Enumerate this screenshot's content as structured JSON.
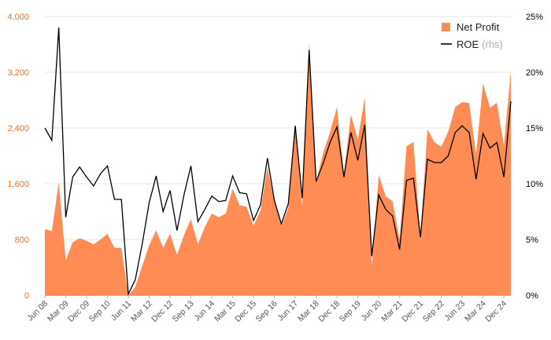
{
  "chart_data": {
    "type": "area",
    "x": [
      "Jun 08",
      "Sep 08",
      "Dec 08",
      "Mar 09",
      "Jun 09",
      "Sep 09",
      "Dec 09",
      "Mar 10",
      "Jun 10",
      "Sep 10",
      "Dec 10",
      "Mar 11",
      "Jun 11",
      "Sep 11",
      "Dec 11",
      "Mar 12",
      "Jun 12",
      "Sep 12",
      "Dec 12",
      "Mar 13",
      "Jun 13",
      "Sep 13",
      "Dec 13",
      "Mar 14",
      "Jun 14",
      "Sep 14",
      "Dec 14",
      "Mar 15",
      "Jun 15",
      "Sep 15",
      "Dec 15",
      "Mar 16",
      "Jun 16",
      "Sep 16",
      "Dec 16",
      "Mar 17",
      "Jun 17",
      "Sep 17",
      "Dec 17",
      "Mar 18",
      "Jun 18",
      "Sep 18",
      "Dec 18",
      "Mar 19",
      "Jun 19",
      "Sep 19",
      "Dec 19",
      "Mar 20",
      "Jun 20",
      "Sep 20",
      "Dec 20",
      "Mar 21",
      "Jun 21",
      "Sep 21",
      "Dec 21",
      "Mar 22",
      "Jun 22",
      "Sep 22",
      "Dec 22",
      "Mar 23",
      "Jun 23",
      "Sep 23",
      "Dec 23",
      "Mar 24",
      "Jun 24",
      "Sep 24",
      "Dec 24",
      "Mar 25"
    ],
    "xticks": [
      "Jun 08",
      "Mar 09",
      "Dec 09",
      "Sep 10",
      "Jun 11",
      "Mar 12",
      "Dec 12",
      "Sep 13",
      "Jun 14",
      "Mar 15",
      "Dec 15",
      "Sep 16",
      "Jun 17",
      "Mar 18",
      "Dec 18",
      "Sep 19",
      "Jun 20",
      "Mar 21",
      "Dec 21",
      "Sep 22",
      "Jun 23",
      "Mar 24",
      "Dec 24"
    ],
    "series": [
      {
        "name": "Net Profit",
        "axis": "left",
        "type": "area",
        "color": "#ff8c55",
        "values": [
          950,
          920,
          1620,
          500,
          760,
          820,
          780,
          730,
          800,
          880,
          680,
          680,
          0,
          120,
          420,
          720,
          930,
          680,
          880,
          580,
          860,
          1090,
          730,
          980,
          1170,
          1120,
          1170,
          1530,
          1290,
          1270,
          1000,
          1210,
          1840,
          1350,
          990,
          1250,
          2460,
          1260,
          3620,
          1620,
          2040,
          2340,
          2700,
          1750,
          2590,
          2240,
          2840,
          420,
          1730,
          1420,
          1350,
          800,
          2140,
          2200,
          840,
          2380,
          2200,
          2130,
          2350,
          2700,
          2770,
          2760,
          2030,
          3040,
          2690,
          2760,
          2150,
          3220
        ]
      },
      {
        "name": "ROE",
        "note": "(rhs)",
        "axis": "right",
        "type": "line",
        "color": "#000000",
        "values": [
          15.0,
          13.9,
          24.0,
          7.0,
          10.6,
          11.5,
          10.6,
          9.8,
          10.9,
          11.6,
          8.6,
          8.6,
          0.1,
          1.4,
          4.6,
          8.3,
          10.7,
          7.5,
          9.4,
          5.8,
          9.0,
          11.6,
          6.6,
          7.7,
          8.9,
          8.4,
          8.5,
          10.7,
          9.2,
          9.1,
          6.7,
          8.1,
          12.3,
          8.5,
          6.4,
          8.2,
          15.2,
          8.7,
          22.0,
          10.2,
          11.8,
          13.7,
          15.1,
          10.6,
          14.6,
          12.1,
          15.3,
          3.5,
          9.0,
          7.7,
          7.1,
          4.1,
          10.3,
          10.5,
          5.2,
          12.2,
          11.9,
          11.9,
          12.5,
          14.6,
          15.2,
          14.6,
          10.4,
          14.5,
          13.2,
          13.7,
          10.6,
          17.4
        ]
      }
    ],
    "ylim": [
      0,
      4000
    ],
    "yticks": [
      "0",
      "800",
      "1,600",
      "2,400",
      "3,200",
      "4,000"
    ],
    "ylim_right": [
      0,
      25
    ],
    "yticks_right": [
      "0%",
      "5%",
      "10%",
      "15%",
      "20%",
      "25%"
    ],
    "grid": true,
    "legend": {
      "position": "top-right",
      "items": [
        "Net Profit",
        "ROE"
      ],
      "note": "(rhs)"
    },
    "colors": {
      "area": "#ff8c55",
      "line": "#000000",
      "left_tick": "#f37021",
      "grid": "#e6e6e6"
    }
  }
}
